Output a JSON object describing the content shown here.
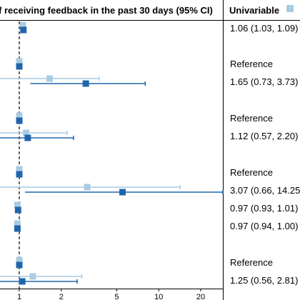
{
  "header": {
    "title": "f receiving feedback in the past 30 days (95% CI)",
    "legend_label": "Univariable"
  },
  "colors": {
    "univariable": "#a9cce3",
    "multivariable": "#2166ac",
    "reference_line": "#000000",
    "frame": "#000000"
  },
  "chart_data": {
    "type": "scatter",
    "subtype": "forest-plot",
    "scale": "log",
    "xlim": [
      0.55,
      30
    ],
    "x_ticks": [
      1,
      2,
      5,
      10,
      20
    ],
    "x_tick_labels": [
      "1",
      "2",
      "5",
      "10",
      "20"
    ],
    "reference_value": 1,
    "rows": [
      {
        "text": "1.06 (1.03, 1.09)",
        "uni": {
          "est": 1.06,
          "lo": 1.03,
          "hi": 1.09
        },
        "multi": {
          "est": 1.07,
          "lo": 1.04,
          "hi": 1.1
        }
      },
      {
        "text": "Reference",
        "uni": {
          "est": 1,
          "lo": 1,
          "hi": 1
        },
        "multi": {
          "est": 1,
          "lo": 1,
          "hi": 1
        }
      },
      {
        "text": "1.65 (0.73, 3.73)",
        "uni": {
          "est": 1.65,
          "lo": 0.73,
          "hi": 3.73
        },
        "multi": {
          "est": 3.0,
          "lo": 1.2,
          "hi": 8.0
        }
      },
      {
        "text": "Reference",
        "uni": {
          "est": 1,
          "lo": 1,
          "hi": 1
        },
        "multi": {
          "est": 1,
          "lo": 1,
          "hi": 1
        }
      },
      {
        "text": "1.12 (0.57, 2.20)",
        "uni": {
          "est": 1.12,
          "lo": 0.57,
          "hi": 2.2
        },
        "multi": {
          "est": 1.15,
          "lo": 0.55,
          "hi": 2.45
        }
      },
      {
        "text": "Reference",
        "uni": {
          "est": 1,
          "lo": 1,
          "hi": 1
        },
        "multi": {
          "est": 1,
          "lo": 1,
          "hi": 1
        }
      },
      {
        "text": "3.07 (0.66, 14.25",
        "uni": {
          "est": 3.07,
          "lo": 0.66,
          "hi": 14.25
        },
        "multi": {
          "est": 5.5,
          "lo": 1.1,
          "hi": 30
        }
      },
      {
        "text": "0.97 (0.93, 1.01)",
        "uni": {
          "est": 0.97,
          "lo": 0.93,
          "hi": 1.01
        },
        "multi": {
          "est": 0.98,
          "lo": 0.94,
          "hi": 1.02
        }
      },
      {
        "text": "0.97 (0.94, 1.00)",
        "uni": {
          "est": 0.97,
          "lo": 0.94,
          "hi": 1.0
        },
        "multi": {
          "est": 0.97,
          "lo": 0.93,
          "hi": 1.0
        }
      },
      {
        "text": "Reference",
        "uni": {
          "est": 1,
          "lo": 1,
          "hi": 1
        },
        "multi": {
          "est": 1,
          "lo": 1,
          "hi": 1
        }
      },
      {
        "text": "1.25 (0.56, 2.81)",
        "uni": {
          "est": 1.25,
          "lo": 0.56,
          "hi": 2.81
        },
        "multi": {
          "est": 1.05,
          "lo": 0.5,
          "hi": 2.6
        }
      }
    ]
  }
}
